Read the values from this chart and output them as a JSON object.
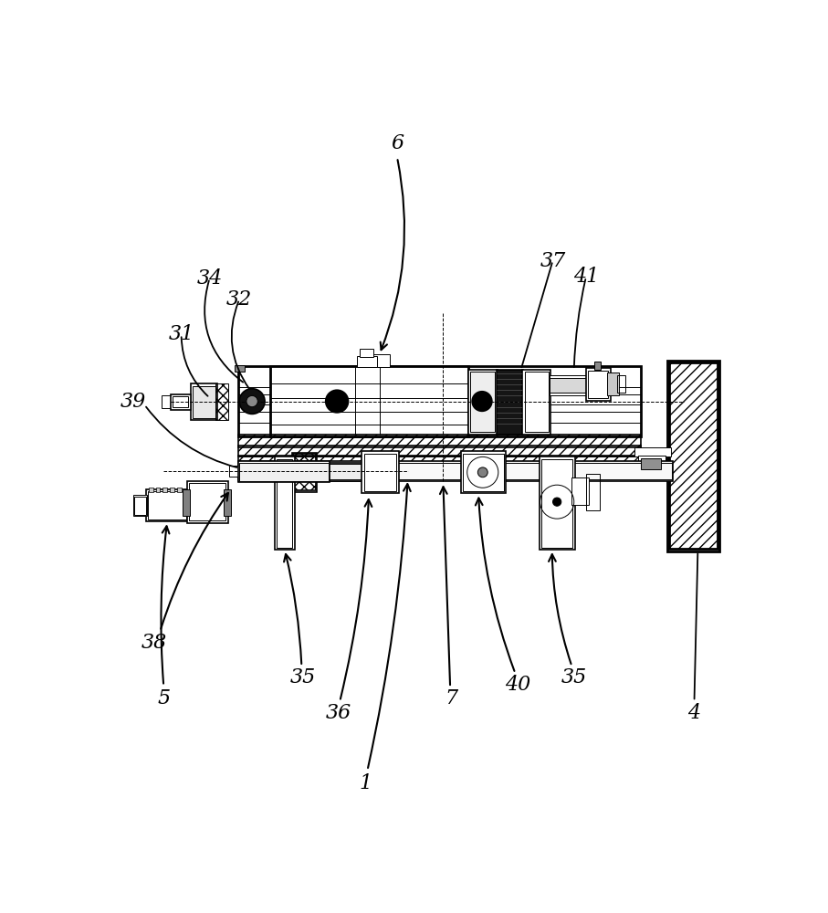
{
  "bg_color": "#ffffff",
  "lc": "#000000",
  "figsize": [
    9.07,
    10.0
  ],
  "dpi": 100,
  "label_fontsize": 16
}
